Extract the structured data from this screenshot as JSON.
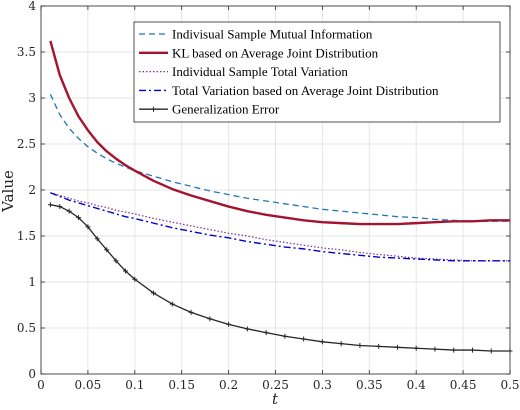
{
  "chart_data": {
    "type": "line",
    "xlabel": "t",
    "ylabel": "Value",
    "xlim": [
      0,
      0.5
    ],
    "ylim": [
      0,
      4
    ],
    "xticks": [
      0,
      0.05,
      0.1,
      0.15,
      0.2,
      0.25,
      0.3,
      0.35,
      0.4,
      0.45,
      0.5
    ],
    "xtick_labels": [
      "0",
      "0.05",
      "0.1",
      "0.15",
      "0.2",
      "0.25",
      "0.3",
      "0.35",
      "0.4",
      "0.45",
      "0.5"
    ],
    "yticks": [
      0,
      0.5,
      1,
      1.5,
      2,
      2.5,
      3,
      3.5,
      4
    ],
    "ytick_labels": [
      "0",
      "0.5",
      "1",
      "1.5",
      "2",
      "2.5",
      "3",
      "3.5",
      "4"
    ],
    "grid": true,
    "legend_position": "top-right",
    "x": [
      0.01,
      0.02,
      0.03,
      0.04,
      0.05,
      0.06,
      0.07,
      0.08,
      0.09,
      0.1,
      0.12,
      0.14,
      0.16,
      0.18,
      0.2,
      0.22,
      0.24,
      0.26,
      0.28,
      0.3,
      0.32,
      0.34,
      0.36,
      0.38,
      0.4,
      0.42,
      0.44,
      0.46,
      0.48,
      0.5
    ],
    "series": [
      {
        "name": "Indivisual Sample Mutual Information",
        "color": "#1f77b4",
        "style": "dashed",
        "values": [
          3.04,
          2.82,
          2.67,
          2.56,
          2.47,
          2.4,
          2.34,
          2.29,
          2.25,
          2.21,
          2.15,
          2.09,
          2.04,
          1.99,
          1.95,
          1.91,
          1.88,
          1.85,
          1.82,
          1.79,
          1.77,
          1.75,
          1.73,
          1.71,
          1.7,
          1.68,
          1.67,
          1.66,
          1.66,
          1.66
        ]
      },
      {
        "name": "KL based on Average Joint Distribution",
        "color": "#a2142f",
        "style": "solid-thick",
        "values": [
          3.62,
          3.25,
          3.0,
          2.8,
          2.65,
          2.52,
          2.42,
          2.34,
          2.27,
          2.21,
          2.1,
          2.01,
          1.94,
          1.88,
          1.82,
          1.77,
          1.73,
          1.7,
          1.67,
          1.65,
          1.64,
          1.63,
          1.63,
          1.63,
          1.64,
          1.65,
          1.66,
          1.66,
          1.67,
          1.67
        ]
      },
      {
        "name": "Individual Sample Total Variation",
        "color": "#7e2f8e",
        "style": "dotted",
        "values": [
          1.97,
          1.94,
          1.91,
          1.88,
          1.86,
          1.83,
          1.81,
          1.78,
          1.76,
          1.74,
          1.69,
          1.65,
          1.61,
          1.57,
          1.53,
          1.5,
          1.46,
          1.43,
          1.4,
          1.37,
          1.35,
          1.32,
          1.3,
          1.28,
          1.26,
          1.25,
          1.24,
          1.23,
          1.23,
          1.23
        ]
      },
      {
        "name": "Total Variation based on Average Joint Distribution",
        "color": "#0000cc",
        "style": "dashdot",
        "values": [
          1.97,
          1.93,
          1.89,
          1.86,
          1.83,
          1.8,
          1.77,
          1.74,
          1.71,
          1.69,
          1.64,
          1.59,
          1.55,
          1.51,
          1.48,
          1.44,
          1.41,
          1.38,
          1.36,
          1.33,
          1.31,
          1.29,
          1.27,
          1.26,
          1.25,
          1.24,
          1.23,
          1.23,
          1.23,
          1.23
        ]
      },
      {
        "name": "Generalization Error",
        "color": "#262626",
        "style": "solid-markers",
        "values": [
          1.84,
          1.82,
          1.77,
          1.7,
          1.6,
          1.47,
          1.35,
          1.23,
          1.12,
          1.03,
          0.88,
          0.76,
          0.67,
          0.6,
          0.54,
          0.49,
          0.45,
          0.41,
          0.38,
          0.35,
          0.33,
          0.31,
          0.3,
          0.29,
          0.28,
          0.27,
          0.26,
          0.26,
          0.25,
          0.25
        ]
      }
    ]
  }
}
